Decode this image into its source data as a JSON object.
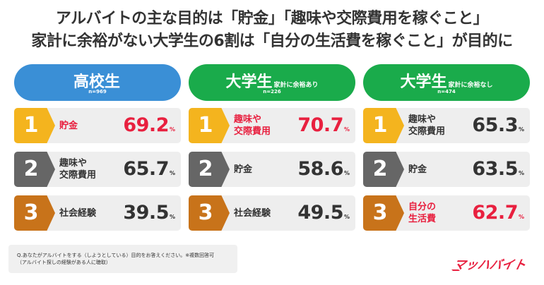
{
  "headline": {
    "line1": "アルバイトの主な目的は「貯金」「趣味や交際費用を稼ぐこと」",
    "line2": "家計に余裕がない大学生の6割は「自分の生活費を稼ぐこと」が目的に"
  },
  "colors": {
    "highschool_blue": "#3a8fd6",
    "university_green": "#1aab4b",
    "rank1_gold": "#f4b41e",
    "rank2_gray": "#666666",
    "rank3_bronze": "#c8731a",
    "highlight_red": "#e8203f",
    "normal_text": "#333333"
  },
  "columns": [
    {
      "title": "高校生",
      "subtitle": "",
      "n": "n=969",
      "ranks": [
        {
          "rank": "1",
          "label": "貯金",
          "value": "69.2",
          "unit": "%",
          "highlight": true
        },
        {
          "rank": "2",
          "label": "趣味や\n交際費用",
          "value": "65.7",
          "unit": "%",
          "highlight": false
        },
        {
          "rank": "3",
          "label": "社会経験",
          "value": "39.5",
          "unit": "%",
          "highlight": false
        }
      ]
    },
    {
      "title": "大学生",
      "subtitle": "家計に余裕あり",
      "n": "n=226",
      "ranks": [
        {
          "rank": "1",
          "label": "趣味や\n交際費用",
          "value": "70.7",
          "unit": "%",
          "highlight": true
        },
        {
          "rank": "2",
          "label": "貯金",
          "value": "58.6",
          "unit": "%",
          "highlight": false
        },
        {
          "rank": "3",
          "label": "社会経験",
          "value": "49.5",
          "unit": "%",
          "highlight": false
        }
      ]
    },
    {
      "title": "大学生",
      "subtitle": "家計に余裕なし",
      "n": "n=474",
      "ranks": [
        {
          "rank": "1",
          "label": "趣味や\n交際費用",
          "value": "65.3",
          "unit": "%",
          "highlight": false
        },
        {
          "rank": "2",
          "label": "貯金",
          "value": "63.5",
          "unit": "%",
          "highlight": false
        },
        {
          "rank": "3",
          "label": "自分の\n生活費",
          "value": "62.7",
          "unit": "%",
          "highlight": true
        }
      ]
    }
  ],
  "note": {
    "line1": "Q.あなたがアルバイトをする（しようとしている）目的をお答えください。※複数回答可",
    "line2": "（アルバイト探しの経験がある人に聴取）"
  },
  "logo": {
    "text": "マッハバイト",
    "icon": "mach-baito-logo"
  }
}
